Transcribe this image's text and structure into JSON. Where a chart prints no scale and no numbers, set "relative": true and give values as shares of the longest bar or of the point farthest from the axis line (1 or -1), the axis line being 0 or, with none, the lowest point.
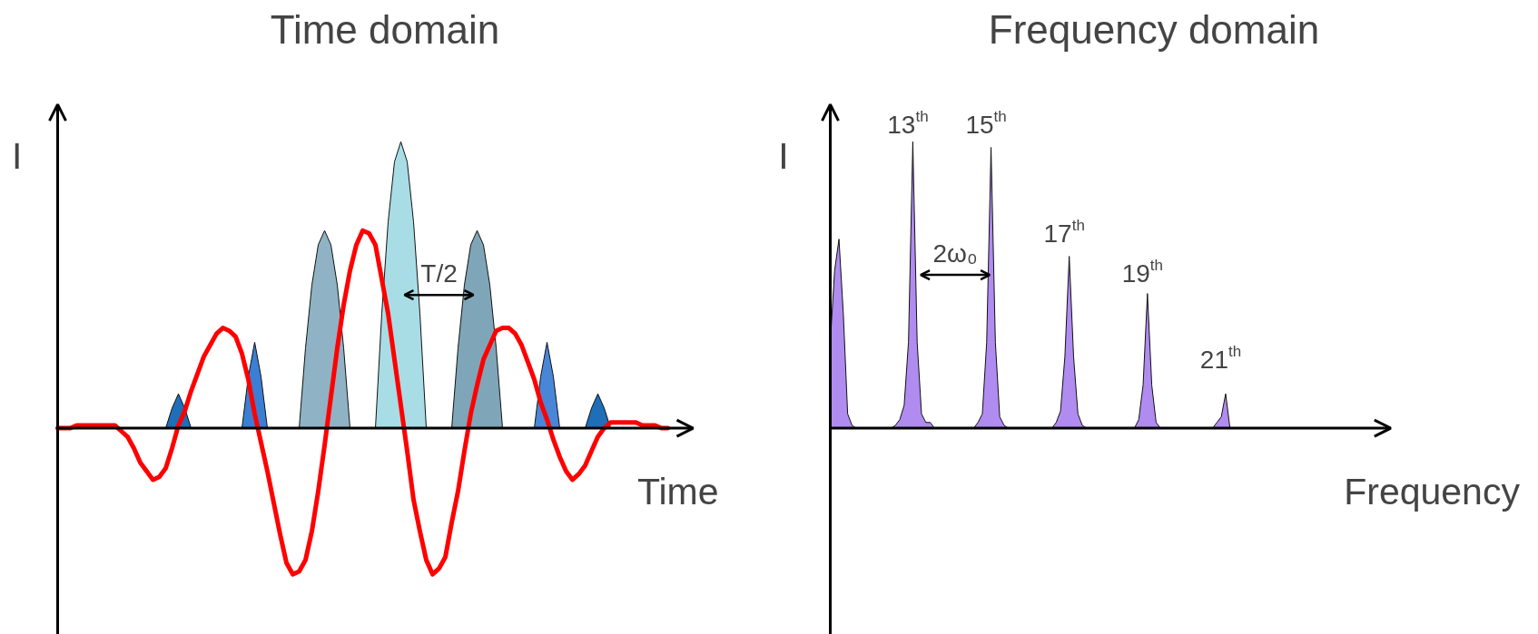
{
  "chart_data": [
    {
      "type": "line",
      "title": "Time domain",
      "xlabel": "Time",
      "ylabel": "I",
      "relative": true,
      "categories": [
        null,
        null,
        null,
        null,
        null,
        null,
        null,
        null,
        null,
        null,
        null,
        null,
        null,
        null,
        null,
        null,
        null,
        null,
        null,
        null,
        null,
        null,
        null,
        null,
        null,
        null,
        null,
        null,
        null,
        null,
        null,
        null,
        null,
        null,
        null,
        null,
        null,
        null,
        null,
        null,
        null,
        null,
        null,
        null,
        null,
        null,
        null,
        null,
        null,
        null,
        null,
        null,
        null,
        null,
        null,
        null,
        null,
        null,
        null,
        null,
        null,
        null,
        null,
        null,
        null,
        null,
        null,
        null,
        null,
        null,
        null,
        null,
        null,
        null,
        null,
        null,
        null,
        null,
        null,
        null,
        null,
        null,
        null,
        null,
        null,
        null,
        null,
        null,
        null,
        null,
        null,
        null,
        null,
        null,
        null,
        null,
        null
      ],
      "annotations": [
        "T/2"
      ],
      "series": [
        {
          "type": "area",
          "color": "#1f6fb8",
          "values": [
            null,
            null,
            null,
            null,
            null,
            null,
            null,
            null,
            null,
            null,
            null,
            null,
            null,
            null,
            null,
            null,
            null,
            0,
            0.07,
            0.12,
            0.07,
            0,
            null,
            null,
            null,
            null,
            null,
            null,
            null,
            null,
            null,
            null,
            null,
            null,
            null,
            null,
            null,
            null,
            null,
            null,
            null,
            null,
            null,
            null,
            null,
            null,
            null,
            null,
            null,
            null,
            null,
            null,
            null,
            null,
            null,
            null,
            null,
            null,
            null,
            null,
            null,
            null,
            null,
            null,
            null,
            null,
            null,
            null,
            null,
            null,
            null,
            null,
            null,
            null,
            null,
            null,
            null,
            null,
            null,
            null,
            null,
            null,
            null,
            null,
            null,
            null,
            null,
            null,
            null,
            null,
            null,
            null,
            null,
            null,
            null,
            null,
            null
          ]
        },
        {
          "type": "area",
          "color": "#3b7fd4",
          "values": [
            null,
            null,
            null,
            null,
            null,
            null,
            null,
            null,
            null,
            null,
            null,
            null,
            null,
            null,
            null,
            null,
            null,
            null,
            null,
            null,
            null,
            null,
            null,
            null,
            null,
            null,
            null,
            null,
            null,
            0,
            0.18,
            0.3,
            0.18,
            0,
            null,
            null,
            null,
            null,
            null,
            null,
            null,
            null,
            null,
            null,
            null,
            null,
            null,
            null,
            null,
            null,
            null,
            null,
            null,
            null,
            null,
            null,
            null,
            null,
            null,
            null,
            null,
            null,
            null,
            null,
            null,
            null,
            null,
            null,
            null,
            null,
            null,
            null,
            null,
            null,
            null,
            null,
            null,
            null,
            null,
            null,
            null,
            null,
            null,
            null,
            null,
            null,
            null,
            null,
            null,
            null,
            null,
            null,
            null,
            null,
            null,
            null,
            null
          ]
        },
        {
          "type": "area",
          "color": "#8fb3c4",
          "values": [
            null,
            null,
            null,
            null,
            null,
            null,
            null,
            null,
            null,
            null,
            null,
            null,
            null,
            null,
            null,
            null,
            null,
            null,
            null,
            null,
            null,
            null,
            null,
            null,
            null,
            null,
            null,
            null,
            null,
            null,
            null,
            null,
            null,
            null,
            null,
            null,
            null,
            null,
            0,
            0.28,
            0.5,
            0.64,
            0.69,
            0.64,
            0.5,
            0.28,
            0,
            null,
            null,
            null,
            null,
            null,
            null,
            null,
            null,
            null,
            null,
            null,
            null,
            null,
            null,
            null,
            null,
            null,
            null,
            null,
            null,
            null,
            null,
            null,
            null,
            null,
            null,
            null,
            null,
            null,
            null,
            null,
            null,
            null,
            null,
            null,
            null,
            null,
            null,
            null,
            null,
            null,
            null,
            null,
            null,
            null,
            null,
            null,
            null,
            null,
            null
          ]
        },
        {
          "type": "area",
          "color": "#a8dde6",
          "values": [
            null,
            null,
            null,
            null,
            null,
            null,
            null,
            null,
            null,
            null,
            null,
            null,
            null,
            null,
            null,
            null,
            null,
            null,
            null,
            null,
            null,
            null,
            null,
            null,
            null,
            null,
            null,
            null,
            null,
            null,
            null,
            null,
            null,
            null,
            null,
            null,
            null,
            null,
            null,
            null,
            null,
            null,
            null,
            null,
            null,
            null,
            null,
            null,
            null,
            null,
            0,
            0.4,
            0.72,
            0.93,
            1,
            0.93,
            0.72,
            0.4,
            0,
            null,
            null,
            null,
            null,
            null,
            null,
            null,
            null,
            null,
            null,
            null,
            null,
            null,
            null,
            null,
            null,
            null,
            null,
            null,
            null,
            null,
            null,
            null,
            null,
            null,
            null,
            null,
            null,
            null,
            null,
            null,
            null,
            null,
            null,
            null,
            null,
            null,
            null
          ]
        },
        {
          "type": "area",
          "color": "#7fa6b8",
          "values": [
            null,
            null,
            null,
            null,
            null,
            null,
            null,
            null,
            null,
            null,
            null,
            null,
            null,
            null,
            null,
            null,
            null,
            null,
            null,
            null,
            null,
            null,
            null,
            null,
            null,
            null,
            null,
            null,
            null,
            null,
            null,
            null,
            null,
            null,
            null,
            null,
            null,
            null,
            null,
            null,
            null,
            null,
            null,
            null,
            null,
            null,
            null,
            null,
            null,
            null,
            null,
            null,
            null,
            null,
            null,
            null,
            null,
            null,
            null,
            null,
            null,
            null,
            0,
            0.28,
            0.5,
            0.64,
            0.69,
            0.64,
            0.5,
            0.28,
            0,
            null,
            null,
            null,
            null,
            null,
            null,
            null,
            null,
            null,
            null,
            null,
            null,
            null,
            null,
            null,
            null,
            null,
            null,
            null,
            null,
            null,
            null,
            null,
            null,
            null,
            null
          ]
        },
        {
          "type": "area",
          "color": "#4a86d8",
          "values": [
            null,
            null,
            null,
            null,
            null,
            null,
            null,
            null,
            null,
            null,
            null,
            null,
            null,
            null,
            null,
            null,
            null,
            null,
            null,
            null,
            null,
            null,
            null,
            null,
            null,
            null,
            null,
            null,
            null,
            null,
            null,
            null,
            null,
            null,
            null,
            null,
            null,
            null,
            null,
            null,
            null,
            null,
            null,
            null,
            null,
            null,
            null,
            null,
            null,
            null,
            null,
            null,
            null,
            null,
            null,
            null,
            null,
            null,
            null,
            null,
            null,
            null,
            null,
            null,
            null,
            null,
            null,
            null,
            null,
            null,
            null,
            null,
            null,
            null,
            null,
            0,
            0.18,
            0.3,
            0.18,
            0,
            null,
            null,
            null,
            null,
            null,
            null,
            null,
            null,
            null,
            null,
            null,
            null,
            null,
            null,
            null,
            null,
            null
          ]
        },
        {
          "type": "area",
          "color": "#1f6fb8",
          "values": [
            null,
            null,
            null,
            null,
            null,
            null,
            null,
            null,
            null,
            null,
            null,
            null,
            null,
            null,
            null,
            null,
            null,
            null,
            null,
            null,
            null,
            null,
            null,
            null,
            null,
            null,
            null,
            null,
            null,
            null,
            null,
            null,
            null,
            null,
            null,
            null,
            null,
            null,
            null,
            null,
            null,
            null,
            null,
            null,
            null,
            null,
            null,
            null,
            null,
            null,
            null,
            null,
            null,
            null,
            null,
            null,
            null,
            null,
            null,
            null,
            null,
            null,
            null,
            null,
            null,
            null,
            null,
            null,
            null,
            null,
            null,
            null,
            null,
            null,
            null,
            null,
            null,
            null,
            null,
            null,
            null,
            null,
            null,
            0,
            0.07,
            0.12,
            0.07,
            0,
            null,
            null,
            null,
            null,
            null,
            null,
            null,
            null,
            null
          ]
        },
        {
          "type": "line",
          "color": "#ff0000",
          "values": [
            0,
            0,
            0,
            0.01,
            0.01,
            0.01,
            0.01,
            0.01,
            0.01,
            0.01,
            -0.01,
            -0.03,
            -0.07,
            -0.12,
            -0.15,
            -0.18,
            -0.17,
            -0.14,
            -0.07,
            0.01,
            0.06,
            0.13,
            0.19,
            0.25,
            0.29,
            0.33,
            0.35,
            0.34,
            0.32,
            0.26,
            0.17,
            0.05,
            -0.05,
            -0.15,
            -0.26,
            -0.37,
            -0.47,
            -0.51,
            -0.5,
            -0.46,
            -0.36,
            -0.22,
            -0.06,
            0.11,
            0.28,
            0.43,
            0.55,
            0.64,
            0.69,
            0.68,
            0.64,
            0.52,
            0.4,
            0.24,
            0.08,
            -0.08,
            -0.25,
            -0.36,
            -0.46,
            -0.51,
            -0.49,
            -0.45,
            -0.33,
            -0.22,
            -0.08,
            0.05,
            0.15,
            0.24,
            0.29,
            0.34,
            0.35,
            0.35,
            0.33,
            0.29,
            0.23,
            0.17,
            0.09,
            0.03,
            -0.04,
            -0.1,
            -0.15,
            -0.18,
            -0.16,
            -0.13,
            -0.08,
            -0.03,
            0,
            0.02,
            0.02,
            0.02,
            0.02,
            0.02,
            0.01,
            0.01,
            0.01,
            0,
            0
          ]
        }
      ]
    },
    {
      "type": "area",
      "title": "Frequency domain",
      "xlabel": "Frequency",
      "ylabel": "I",
      "relative": true,
      "categories": [
        null,
        null,
        null,
        null,
        null,
        null,
        null,
        null,
        null,
        null,
        null,
        null,
        null,
        null,
        null,
        null,
        null,
        null,
        null,
        null,
        null,
        null,
        null,
        null,
        null,
        null,
        null,
        null,
        null,
        null,
        null,
        null,
        null,
        null,
        null,
        null,
        null,
        null,
        null,
        null,
        null,
        null,
        null,
        null,
        null,
        null,
        null,
        null,
        null,
        null,
        null,
        null,
        null,
        null,
        null,
        null,
        null,
        null,
        null,
        null,
        null,
        null,
        null,
        null,
        null,
        null,
        null,
        null,
        null,
        null,
        null,
        null,
        null,
        null,
        null,
        null,
        null,
        null,
        null,
        null,
        null,
        null,
        null,
        null,
        null,
        null,
        null,
        null,
        null,
        null,
        null,
        null,
        null
      ],
      "annotations": [
        "13$^{th}$",
        "15$^{th}$",
        "17$^{th}$",
        "19$^{th}$",
        "21$^{th}$",
        "2ω₀"
      ],
      "series": [
        {
          "color": "#b08cf0",
          "values": [
            0.3,
            0.55,
            0.66,
            0.4,
            0.05,
            0.01,
            0,
            0,
            0,
            0,
            0,
            0,
            0,
            0,
            0,
            0.01,
            0.03,
            0.08,
            0.3,
            1,
            0.3,
            0.05,
            0.02,
            0.02,
            0,
            0,
            0,
            0,
            0,
            0,
            0,
            0,
            0,
            0,
            0.02,
            0.05,
            0.3,
            0.98,
            0.3,
            0.04,
            0.01,
            0,
            0,
            0,
            0,
            0,
            0,
            0,
            0,
            0,
            0,
            0,
            0.02,
            0.06,
            0.25,
            0.6,
            0.25,
            0.05,
            0.01,
            0,
            0,
            0,
            0,
            0,
            0,
            0,
            0,
            0,
            0,
            0,
            0,
            0.03,
            0.15,
            0.47,
            0.15,
            0.02,
            0,
            0,
            0,
            0,
            0,
            0,
            0,
            0,
            0,
            0,
            0,
            0,
            0,
            0.02,
            0.04,
            0.12,
            0
          ]
        }
      ]
    }
  ]
}
